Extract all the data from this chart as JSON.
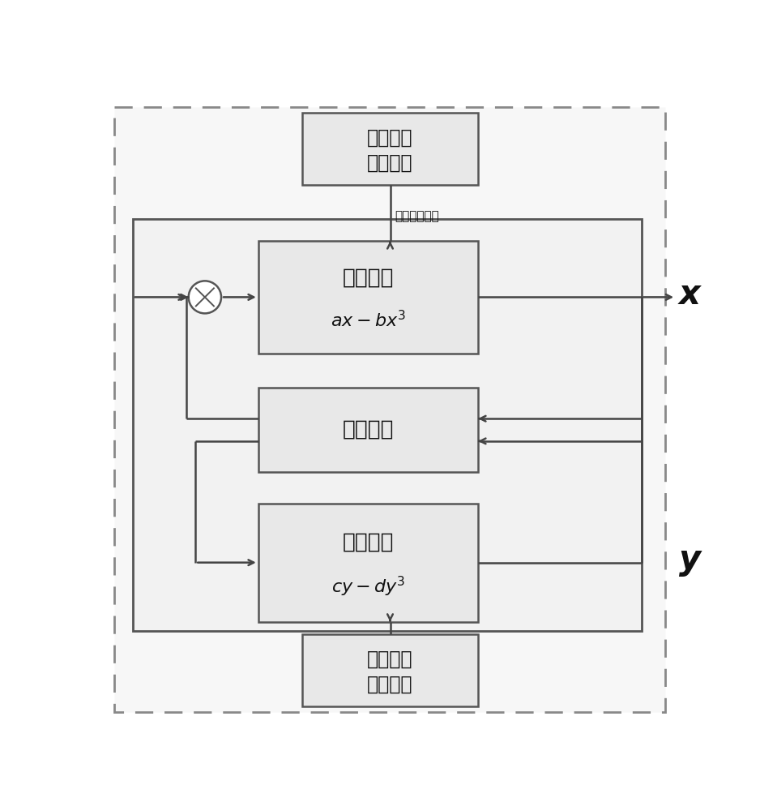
{
  "bg_color": "#ffffff",
  "box_fill": "#e8e8e8",
  "box_edge": "#555555",
  "outer_dashed_color": "#888888",
  "inner_solid_color": "#555555",
  "text_color": "#111111",
  "arrow_color": "#444444",
  "label_coupling": "耦合双稳系统",
  "label_x": "x",
  "label_y": "y",
  "top_box_label1": "受控系统",
  "top_box_label2": "最优参数",
  "bottom_box_label1": "控制系统",
  "bottom_box_label2": "最优参数",
  "controlled_label1": "受控系统",
  "coupling_label": "耦合作用",
  "control_label1": "控制系统"
}
